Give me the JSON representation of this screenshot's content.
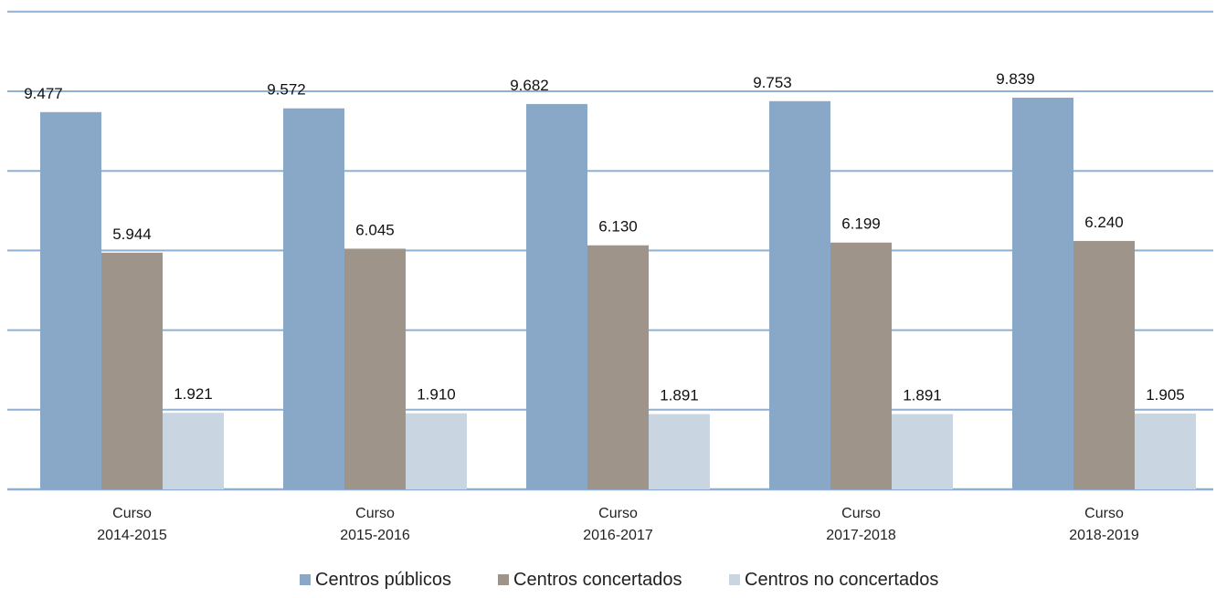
{
  "chart_data": {
    "type": "bar",
    "categories": [
      [
        "Curso",
        "2014-2015"
      ],
      [
        "Curso",
        "2015-2016"
      ],
      [
        "Curso",
        "2016-2017"
      ],
      [
        "Curso",
        "2017-2018"
      ],
      [
        "Curso",
        "2018-2019"
      ]
    ],
    "series": [
      {
        "name": "Centros públicos",
        "color": "#89a8c8",
        "values": [
          9477,
          9572,
          9682,
          9753,
          9839
        ],
        "labels": [
          "9.477",
          "9.572",
          "9.682",
          "9.753",
          "9.839"
        ]
      },
      {
        "name": "Centros concertados",
        "color": "#9e948a",
        "values": [
          5944,
          6045,
          6130,
          6199,
          6240
        ],
        "labels": [
          "5.944",
          "6.045",
          "6.130",
          "6.199",
          "6.240"
        ]
      },
      {
        "name": "Centros no concertados",
        "color": "#c9d6e2",
        "values": [
          1921,
          1910,
          1891,
          1891,
          1905
        ],
        "labels": [
          "1.921",
          "1.910",
          "1.891",
          "1.891",
          "1.905"
        ]
      }
    ],
    "ylim": [
      0,
      12000
    ],
    "grid": true,
    "gridline_color": "#8fb0d2",
    "legend_position": "bottom"
  }
}
